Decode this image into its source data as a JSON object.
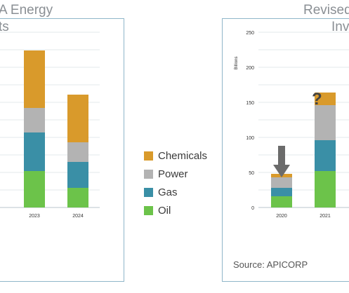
{
  "titles": {
    "left_line1": "A Energy",
    "left_line2": "ts",
    "right_line1": "Revised",
    "right_line2": "Inv"
  },
  "legend": [
    {
      "label": "Chemicals",
      "color": "#d99a2b"
    },
    {
      "label": "Power",
      "color": "#b3b3b3"
    },
    {
      "label": "Gas",
      "color": "#3a8fa6"
    },
    {
      "label": "Oil",
      "color": "#6cc34a"
    }
  ],
  "source": "Source: APICORP",
  "annotation": "?",
  "chart_data": [
    {
      "type": "bar",
      "stacked": true,
      "categories": [
        "2023",
        "2024"
      ],
      "series": [
        {
          "name": "Oil",
          "values": [
            52,
            28
          ]
        },
        {
          "name": "Gas",
          "values": [
            55,
            37
          ]
        },
        {
          "name": "Power",
          "values": [
            35,
            28
          ]
        },
        {
          "name": "Chemicals",
          "values": [
            82,
            68
          ]
        }
      ],
      "ylim": [
        0,
        250
      ],
      "grid": true
    },
    {
      "type": "bar",
      "stacked": true,
      "categories": [
        "2020",
        "2021"
      ],
      "ylabel": "Billions",
      "y_ticks": [
        "0",
        "50",
        "100",
        "150",
        "200",
        "250"
      ],
      "series": [
        {
          "name": "Oil",
          "values": [
            16,
            52
          ]
        },
        {
          "name": "Gas",
          "values": [
            12,
            44
          ]
        },
        {
          "name": "Power",
          "values": [
            15,
            50
          ]
        },
        {
          "name": "Chemicals",
          "values": [
            5,
            18
          ]
        }
      ],
      "ylim": [
        0,
        250
      ],
      "grid": true,
      "annotations": [
        "down-arrow over 2020",
        "question mark over 2021"
      ]
    }
  ]
}
